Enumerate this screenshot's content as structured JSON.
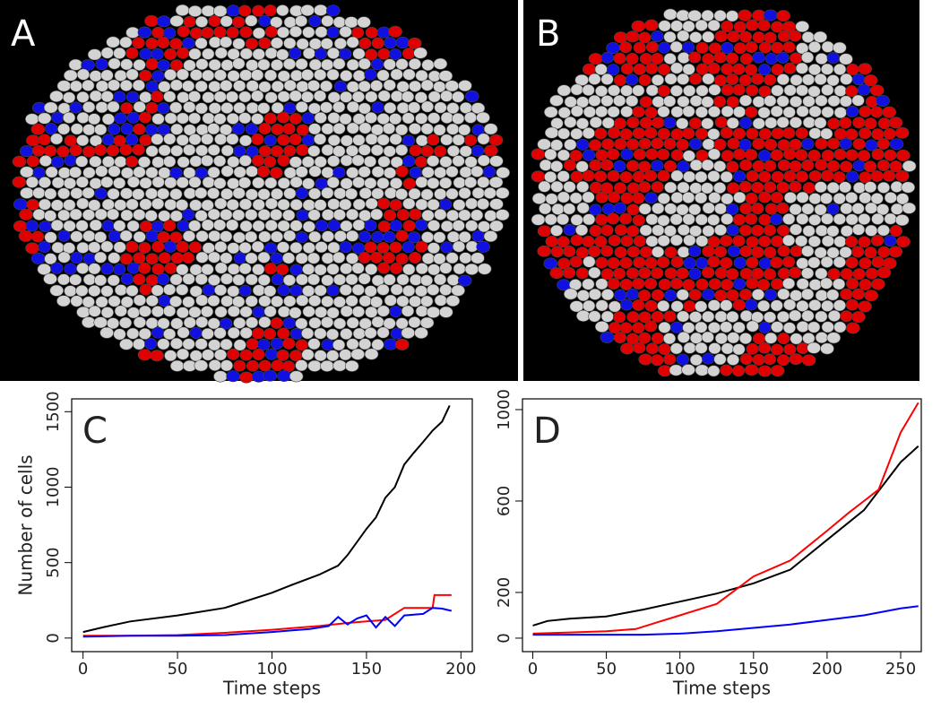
{
  "image_panels": [
    {
      "label": "A"
    },
    {
      "label": "B"
    }
  ],
  "chart_data": [
    {
      "type": "line",
      "label": "C",
      "xlabel": "Time steps",
      "ylabel": "Number of cells",
      "xlim": [
        -6,
        206
      ],
      "ylim": [
        -90,
        1585
      ],
      "xticks": [
        0,
        50,
        100,
        150,
        200
      ],
      "yticks": [
        0,
        500,
        1000,
        1500
      ],
      "series": [
        {
          "color": "#000000",
          "x": [
            0,
            10,
            25,
            50,
            75,
            100,
            110,
            125,
            135,
            140,
            150,
            155,
            160,
            165,
            170,
            175,
            180,
            185,
            190,
            194
          ],
          "values": [
            40,
            70,
            110,
            150,
            200,
            300,
            350,
            420,
            480,
            550,
            723,
            800,
            930,
            1000,
            1150,
            1227,
            1300,
            1375,
            1434,
            1541
          ]
        },
        {
          "color": "#ff0000",
          "x": [
            0,
            25,
            50,
            75,
            100,
            110,
            125,
            140,
            150,
            160,
            170,
            185,
            186,
            195
          ],
          "values": [
            15,
            15,
            20,
            35,
            55,
            65,
            80,
            100,
            110,
            120,
            200,
            200,
            285,
            285
          ]
        },
        {
          "color": "#0000ff",
          "x": [
            0,
            25,
            50,
            75,
            100,
            110,
            120,
            130,
            135,
            140,
            145,
            150,
            155,
            160,
            165,
            170,
            180,
            185,
            190,
            195
          ],
          "values": [
            10,
            15,
            15,
            20,
            40,
            50,
            60,
            80,
            140,
            90,
            130,
            150,
            70,
            140,
            80,
            150,
            160,
            200,
            195,
            180
          ]
        }
      ]
    },
    {
      "type": "line",
      "label": "D",
      "xlabel": "Time steps",
      "xlim": [
        -7,
        264
      ],
      "ylim": [
        -59,
        1047
      ],
      "xticks": [
        0,
        50,
        100,
        150,
        200,
        250
      ],
      "yticks": [
        0,
        200,
        600,
        1000
      ],
      "series": [
        {
          "color": "#000000",
          "x": [
            0,
            10,
            25,
            50,
            75,
            100,
            125,
            150,
            175,
            200,
            225,
            250,
            262
          ],
          "values": [
            55,
            75,
            85,
            95,
            125,
            160,
            195,
            240,
            300,
            430,
            560,
            770,
            840
          ]
        },
        {
          "color": "#ff0000",
          "x": [
            0,
            25,
            50,
            70,
            85,
            100,
            125,
            150,
            175,
            200,
            215,
            225,
            235,
            250,
            262
          ],
          "values": [
            20,
            25,
            30,
            40,
            70,
            100,
            150,
            270,
            340,
            470,
            550,
            600,
            650,
            900,
            1030
          ]
        },
        {
          "color": "#0000ff",
          "x": [
            0,
            25,
            50,
            75,
            100,
            125,
            150,
            175,
            200,
            225,
            250,
            262
          ],
          "values": [
            15,
            15,
            15,
            15,
            20,
            30,
            45,
            60,
            80,
            100,
            130,
            140
          ]
        }
      ]
    }
  ]
}
